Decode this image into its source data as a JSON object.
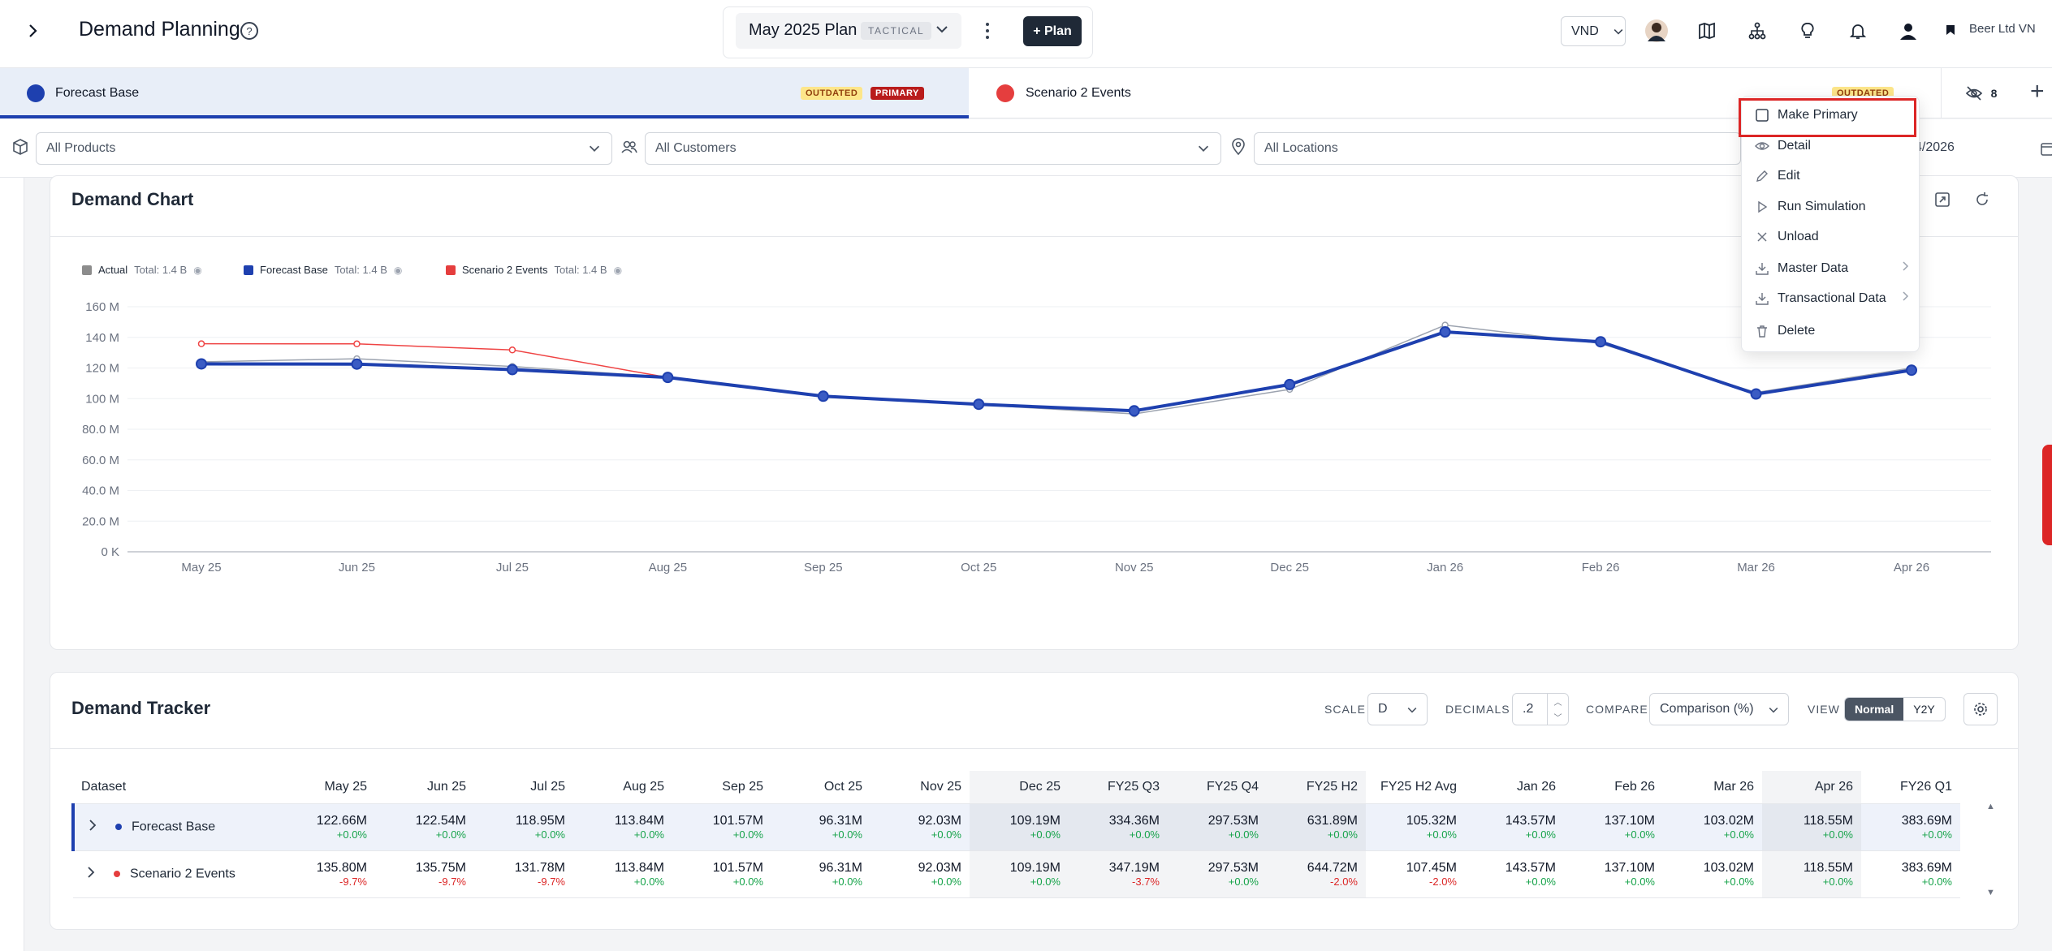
{
  "header": {
    "app_title": "Demand Planning",
    "plan_name": "May 2025 Plan",
    "plan_type": "TACTICAL",
    "add_plan_label": "+ Plan",
    "currency": "VND",
    "company": "Beer Ltd VN"
  },
  "tabs": [
    {
      "label": "Forecast Base",
      "color": "#1e40af",
      "badges": [
        "OUTDATED",
        "PRIMARY"
      ]
    },
    {
      "label": "Scenario 2 Events",
      "color": "#e53e3e",
      "badges": [
        "OUTDATED"
      ]
    }
  ],
  "hidden_count": "8",
  "filters": {
    "products": "All Products",
    "customers": "All Customers",
    "locations": "All Locations",
    "date_range": "5 - 04/2026"
  },
  "menu": {
    "items": [
      {
        "label": "Make Primary",
        "icon": "checkbox-icon"
      },
      {
        "label": "Detail",
        "icon": "eye-icon"
      },
      {
        "label": "Edit",
        "icon": "pencil-icon"
      },
      {
        "label": "Run Simulation",
        "icon": "play-icon"
      },
      {
        "label": "Unload",
        "icon": "close-icon"
      },
      {
        "label": "Master Data",
        "icon": "download-icon",
        "submenu": true
      },
      {
        "label": "Transactional Data",
        "icon": "download-icon",
        "submenu": true
      },
      {
        "label": "Delete",
        "icon": "trash-icon"
      }
    ]
  },
  "demand_chart": {
    "title": "Demand Chart",
    "legend": [
      {
        "name": "Actual",
        "total": "Total: 1.4 B",
        "color": "#8c8c8c"
      },
      {
        "name": "Forecast Base",
        "total": "Total: 1.4 B",
        "color": "#1e40af"
      },
      {
        "name": "Scenario 2 Events",
        "total": "Total: 1.4 B",
        "color": "#e53e3e"
      }
    ]
  },
  "chart_data": {
    "type": "line",
    "categories": [
      "May 25",
      "Jun 25",
      "Jul 25",
      "Aug 25",
      "Sep 25",
      "Oct 25",
      "Nov 25",
      "Dec 25",
      "Jan 26",
      "Feb 26",
      "Mar 26",
      "Apr 26"
    ],
    "y_ticks": [
      "0 K",
      "20.0 M",
      "40.0 M",
      "60.0 M",
      "80.0 M",
      "100 M",
      "120 M",
      "140 M",
      "160 M"
    ],
    "ylim": [
      0,
      160
    ],
    "grid": true,
    "legend_position": "top-left",
    "series": [
      {
        "name": "Actual",
        "color": "#9ca3af",
        "values": [
          124,
          126,
          121,
          114,
          101,
          96,
          90,
          106,
          148,
          136,
          104,
          120
        ]
      },
      {
        "name": "Forecast Base",
        "color": "#1e40af",
        "values": [
          122.66,
          122.54,
          118.95,
          113.84,
          101.57,
          96.31,
          92.03,
          109.19,
          143.57,
          137.1,
          103.02,
          118.55
        ]
      },
      {
        "name": "Scenario 2 Events",
        "color": "#ef4444",
        "values": [
          135.8,
          135.75,
          131.78,
          113.84,
          101.57,
          96.31,
          92.03,
          109.19,
          143.57,
          137.1,
          103.02,
          118.55
        ]
      }
    ]
  },
  "tracker": {
    "title": "Demand Tracker",
    "scale_label": "SCALE",
    "scale_value": "D",
    "decimals_label": "DECIMALS",
    "decimals_value": ".2",
    "compare_label": "COMPARE",
    "compare_value": "Comparison (%)",
    "view_label": "VIEW",
    "view_options": [
      "Normal",
      "Y2Y"
    ],
    "columns": [
      "Dataset",
      "May 25",
      "Jun 25",
      "Jul 25",
      "Aug 25",
      "Sep 25",
      "Oct 25",
      "Nov 25",
      "Dec 25",
      "FY25 Q3",
      "FY25 Q4",
      "FY25 H2",
      "FY25 H2 Avg",
      "Jan 26",
      "Feb 26",
      "Mar 26",
      "Apr 26",
      "FY26 Q1"
    ],
    "rows": [
      {
        "name": "Forecast Base",
        "color": "#1e40af",
        "values": [
          "122.66M",
          "122.54M",
          "118.95M",
          "113.84M",
          "101.57M",
          "96.31M",
          "92.03M",
          "109.19M",
          "334.36M",
          "297.53M",
          "631.89M",
          "105.32M",
          "143.57M",
          "137.10M",
          "103.02M",
          "118.55M",
          "383.69M"
        ],
        "deltas": [
          "+0.0%",
          "+0.0%",
          "+0.0%",
          "+0.0%",
          "+0.0%",
          "+0.0%",
          "+0.0%",
          "+0.0%",
          "+0.0%",
          "+0.0%",
          "+0.0%",
          "+0.0%",
          "+0.0%",
          "+0.0%",
          "+0.0%",
          "+0.0%",
          "+0.0%"
        ]
      },
      {
        "name": "Scenario 2 Events",
        "color": "#e53e3e",
        "values": [
          "135.80M",
          "135.75M",
          "131.78M",
          "113.84M",
          "101.57M",
          "96.31M",
          "92.03M",
          "109.19M",
          "347.19M",
          "297.53M",
          "644.72M",
          "107.45M",
          "143.57M",
          "137.10M",
          "103.02M",
          "118.55M",
          "383.69M"
        ],
        "deltas": [
          "-9.7%",
          "-9.7%",
          "-9.7%",
          "+0.0%",
          "+0.0%",
          "+0.0%",
          "+0.0%",
          "+0.0%",
          "-3.7%",
          "+0.0%",
          "-2.0%",
          "-2.0%",
          "+0.0%",
          "+0.0%",
          "+0.0%",
          "+0.0%",
          "+0.0%"
        ]
      }
    ]
  }
}
